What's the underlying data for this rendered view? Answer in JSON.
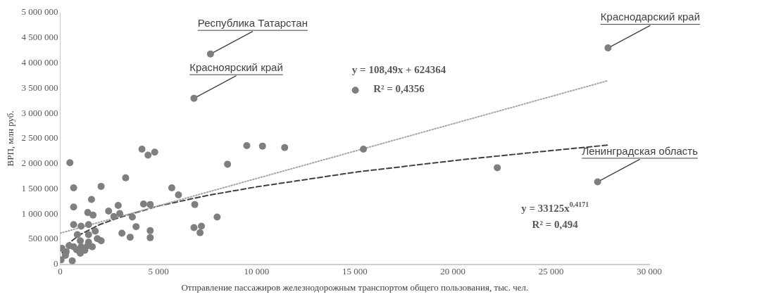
{
  "chart_data": {
    "type": "scatter",
    "xlabel": "Отправление пассажиров железнодорожным транспортом общего пользования, тыс. чел.",
    "ylabel": "ВРП, млн руб.",
    "xlim": [
      0,
      30000
    ],
    "xticks": [
      0,
      {
        "value": 5000,
        "label": "5 000"
      },
      {
        "value": 10000,
        "label": "10 000"
      },
      {
        "value": 15000,
        "label": "15 000"
      },
      {
        "value": 20000,
        "label": "20 000"
      },
      {
        "value": 25000,
        "label": "25 000"
      },
      {
        "value": 30000,
        "label": "30 000"
      }
    ],
    "ylim": [
      0,
      5000000
    ],
    "yticks": [
      0,
      {
        "value": 500000,
        "label": "500 000"
      },
      {
        "value": 1000000,
        "label": "1 000 000"
      },
      {
        "value": 1500000,
        "label": "1 500 000"
      },
      {
        "value": 2000000,
        "label": "2 000 000"
      },
      {
        "value": 2500000,
        "label": "2 500 000"
      },
      {
        "value": 3000000,
        "label": "3 000 000"
      },
      {
        "value": 3500000,
        "label": "3 500 000"
      },
      {
        "value": 4000000,
        "label": "4 000 000"
      },
      {
        "value": 4500000,
        "label": "4 500 000"
      },
      {
        "value": 5000000,
        "label": "5 000 000"
      }
    ],
    "grid": false,
    "legend": false,
    "series": [
      {
        "type": "scatter",
        "color": "#7f7f7f",
        "marker": "circle",
        "x": [
          7650,
          6810,
          15030,
          15440,
          27900,
          27370,
          22260,
          9500,
          10300,
          11430,
          490,
          680,
          680,
          680,
          1060,
          1400,
          1670,
          1440,
          1590,
          2080,
          2460,
          2950,
          2730,
          3030,
          3330,
          3670,
          3860,
          3140,
          3560,
          4160,
          4470,
          4810,
          4240,
          4580,
          4580,
          4580,
          5680,
          6020,
          6850,
          6810,
          7190,
          7120,
          7990,
          8520,
          870,
          1440,
          1780,
          1890,
          2080,
          1020,
          1060,
          1250,
          1630,
          1440,
          830,
          80,
          300,
          450,
          40,
          610,
          680,
          260,
          1020,
          1400
        ],
        "values": [
          4180000,
          3300000,
          3460000,
          2290000,
          4300000,
          1640000,
          1920000,
          2360000,
          2350000,
          2320000,
          2020000,
          1520000,
          1140000,
          790000,
          760000,
          1030000,
          980000,
          790000,
          1290000,
          1550000,
          1060000,
          1170000,
          950000,
          1010000,
          1720000,
          940000,
          750000,
          620000,
          540000,
          2290000,
          2170000,
          2230000,
          1200000,
          1190000,
          670000,
          530000,
          1520000,
          1380000,
          1190000,
          730000,
          760000,
          630000,
          940000,
          1990000,
          590000,
          590000,
          660000,
          510000,
          470000,
          470000,
          350000,
          280000,
          350000,
          440000,
          290000,
          320000,
          250000,
          370000,
          90000,
          70000,
          350000,
          180000,
          220000,
          370000
        ]
      },
      {
        "type": "line",
        "color": "#a6a6a6",
        "marker": "none",
        "line_style": "dotted",
        "x": [
          0,
          27900
        ],
        "values": [
          620000,
          3650000
        ]
      },
      {
        "type": "line",
        "color": "#404040",
        "marker": "none",
        "line_style": "dashed",
        "x": [
          100,
          500,
          1000,
          2000,
          3000,
          5000,
          7500,
          10000,
          15000,
          20000,
          25000,
          27900
        ],
        "values": [
          230000,
          440000,
          590000,
          790000,
          930000,
          1160000,
          1370000,
          1540000,
          1830000,
          2060000,
          2260000,
          2370000
        ]
      }
    ],
    "annotations": [
      {
        "text": "Республика Татарстан",
        "x": 7650,
        "y": 4180000
      },
      {
        "text": "Красноярский край",
        "x": 6810,
        "y": 3300000
      },
      {
        "text": "Краснодарский край",
        "x": 27900,
        "y": 4300000
      },
      {
        "text": "Ленинградская область",
        "x": 27370,
        "y": 1640000
      },
      "y = 108,49x + 624364",
      "R² = 0,4356",
      "y = 33125x$^{0,4171}$",
      "R² = 0,494"
    ]
  }
}
